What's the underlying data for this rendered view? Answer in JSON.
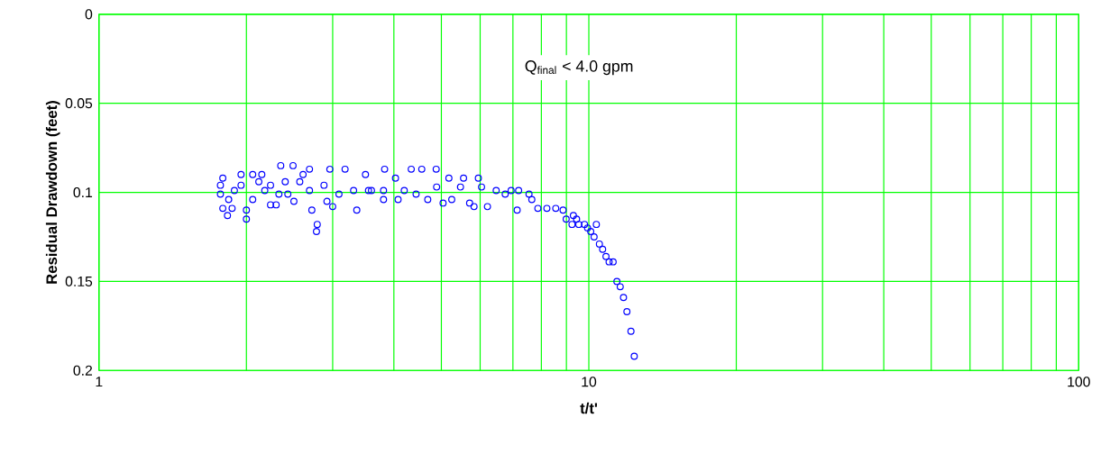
{
  "chart_data": {
    "type": "scatter",
    "xlabel": "t/t'",
    "ylabel": "Residual Drawdown (feet)",
    "annotations": [
      "Q$_{final}$ < 4.0 gpm"
    ],
    "log": "x",
    "grid": true,
    "marker": "circle",
    "xlim": [
      1,
      100
    ],
    "xticks": [
      1,
      10,
      100
    ],
    "ylim": [
      0.2,
      0
    ],
    "yticks": [
      0,
      0.05,
      0.1,
      0.15,
      0.2
    ],
    "series": [
      {
        "color": "#0000ff",
        "x": [
          1.77,
          1.77,
          1.79,
          1.79,
          1.83,
          1.84,
          1.87,
          1.89,
          1.95,
          1.95,
          2.0,
          2.0,
          2.06,
          2.06,
          2.12,
          2.15,
          2.18,
          2.24,
          2.24,
          2.3,
          2.33,
          2.35,
          2.4,
          2.43,
          2.49,
          2.5,
          2.57,
          2.61,
          2.69,
          2.69,
          2.72,
          2.78,
          2.79,
          2.88,
          2.92,
          2.96,
          3.0,
          3.09,
          3.18,
          3.31,
          3.36,
          3.5,
          3.55,
          3.6,
          3.81,
          3.81,
          3.83,
          4.03,
          4.08,
          4.2,
          4.34,
          4.44,
          4.56,
          4.69,
          4.88,
          4.89,
          5.04,
          5.18,
          5.25,
          5.47,
          5.55,
          5.71,
          5.83,
          5.95,
          6.04,
          6.21,
          6.47,
          6.75,
          6.94,
          7.14,
          7.19,
          7.55,
          7.65,
          7.87,
          8.21,
          8.56,
          8.86,
          8.99,
          9.24,
          9.3,
          9.44,
          9.54,
          9.8,
          9.94,
          10.09,
          10.25,
          10.36,
          10.51,
          10.67,
          10.84,
          11.0,
          11.21,
          11.41,
          11.59,
          11.77,
          11.96,
          12.19,
          12.38
        ],
        "values": [
          0.096,
          0.101,
          0.092,
          0.109,
          0.113,
          0.104,
          0.109,
          0.099,
          0.09,
          0.096,
          0.115,
          0.11,
          0.09,
          0.104,
          0.094,
          0.09,
          0.099,
          0.107,
          0.096,
          0.107,
          0.101,
          0.085,
          0.094,
          0.101,
          0.085,
          0.105,
          0.094,
          0.09,
          0.087,
          0.099,
          0.11,
          0.122,
          0.118,
          0.096,
          0.105,
          0.087,
          0.108,
          0.101,
          0.087,
          0.099,
          0.11,
          0.09,
          0.099,
          0.099,
          0.104,
          0.099,
          0.087,
          0.092,
          0.104,
          0.099,
          0.087,
          0.101,
          0.087,
          0.104,
          0.087,
          0.097,
          0.106,
          0.092,
          0.104,
          0.097,
          0.092,
          0.106,
          0.108,
          0.092,
          0.097,
          0.108,
          0.099,
          0.101,
          0.099,
          0.11,
          0.099,
          0.101,
          0.104,
          0.109,
          0.109,
          0.109,
          0.11,
          0.115,
          0.118,
          0.113,
          0.115,
          0.118,
          0.118,
          0.12,
          0.122,
          0.125,
          0.118,
          0.129,
          0.132,
          0.136,
          0.139,
          0.139,
          0.15,
          0.153,
          0.159,
          0.167,
          0.178,
          0.192
        ]
      }
    ]
  }
}
